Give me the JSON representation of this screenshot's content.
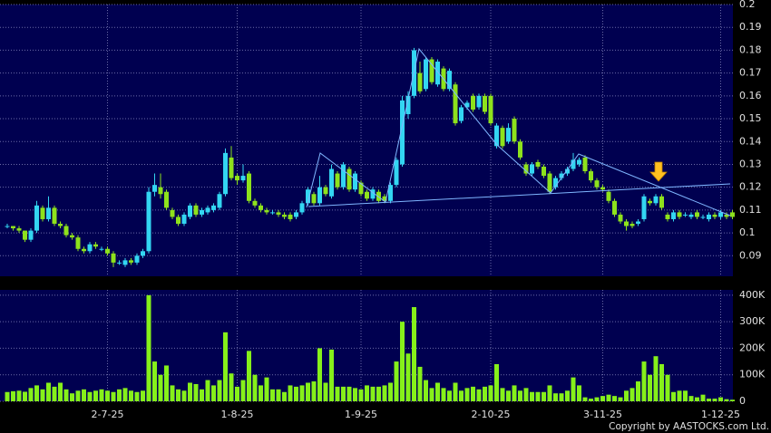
{
  "chart_data": {
    "type": "candlestick",
    "copyright": "Copyright by AASTOCKS.com Ltd.",
    "up_color": "#33d6f2",
    "down_color": "#8ee21c",
    "categories": [
      null,
      null,
      null,
      null,
      null,
      null,
      null,
      null,
      null,
      null,
      null,
      null,
      null,
      null,
      null,
      null,
      null,
      "2-7-25",
      null,
      null,
      null,
      null,
      null,
      null,
      null,
      null,
      null,
      null,
      null,
      null,
      null,
      null,
      null,
      null,
      null,
      null,
      null,
      null,
      null,
      "1-8-25",
      null,
      null,
      null,
      null,
      null,
      null,
      null,
      null,
      null,
      null,
      null,
      null,
      null,
      null,
      null,
      null,
      null,
      null,
      null,
      null,
      "1-9-25",
      null,
      null,
      null,
      null,
      null,
      null,
      null,
      null,
      null,
      null,
      null,
      null,
      null,
      null,
      null,
      null,
      null,
      null,
      null,
      null,
      null,
      "2-10-25",
      null,
      null,
      null,
      null,
      null,
      null,
      null,
      null,
      null,
      null,
      null,
      null,
      null,
      null,
      null,
      null,
      null,
      null,
      "3-11-25",
      null,
      null,
      null,
      null,
      null,
      null,
      null,
      null,
      null,
      null,
      null,
      null,
      null,
      null,
      null,
      null,
      null,
      null,
      null,
      "1-12-25",
      null,
      null
    ],
    "open": [
      0.103,
      0.103,
      0.102,
      0.101,
      0.097,
      0.101,
      0.111,
      0.106,
      0.111,
      0.104,
      0.103,
      0.099,
      0.098,
      0.093,
      0.092,
      0.095,
      0.093,
      0.093,
      0.091,
      0.087,
      0.086,
      0.088,
      0.087,
      0.09,
      0.092,
      0.118,
      0.12,
      0.118,
      0.11,
      0.107,
      0.104,
      0.107,
      0.112,
      0.108,
      0.109,
      0.11,
      0.111,
      0.117,
      0.133,
      0.125,
      0.123,
      0.126,
      0.114,
      0.112,
      0.11,
      0.109,
      0.109,
      0.108,
      0.108,
      0.107,
      0.109,
      0.113,
      0.117,
      0.113,
      0.12,
      0.116,
      0.126,
      0.12,
      0.128,
      0.119,
      0.122,
      0.118,
      0.115,
      0.118,
      0.116,
      0.114,
      0.121,
      0.13,
      0.152,
      0.16,
      0.17,
      0.163,
      0.176,
      0.165,
      0.172,
      0.163,
      0.165,
      0.149,
      0.155,
      0.16,
      0.155,
      0.16,
      0.16,
      0.138,
      0.146,
      0.14,
      0.15,
      0.14,
      0.13,
      0.126,
      0.131,
      0.129,
      0.126,
      0.12,
      0.124,
      0.126,
      0.128,
      0.13,
      0.133,
      0.127,
      0.123,
      0.12,
      0.118,
      0.114,
      0.108,
      0.105,
      0.104,
      0.104,
      0.106,
      0.114,
      0.113,
      0.116,
      0.108,
      0.106,
      0.109,
      0.108,
      0.107,
      0.109,
      0.107,
      0.106,
      0.108,
      0.107,
      0.108,
      0.109
    ],
    "high": [
      0.104,
      0.103,
      0.103,
      0.101,
      0.102,
      0.114,
      0.112,
      0.116,
      0.112,
      0.105,
      0.104,
      0.1,
      0.099,
      0.094,
      0.096,
      0.096,
      0.094,
      0.094,
      0.092,
      0.088,
      0.089,
      0.089,
      0.091,
      0.093,
      0.12,
      0.126,
      0.126,
      0.119,
      0.111,
      0.108,
      0.109,
      0.113,
      0.113,
      0.111,
      0.112,
      0.113,
      0.118,
      0.137,
      0.138,
      0.126,
      0.13,
      0.127,
      0.115,
      0.113,
      0.111,
      0.11,
      0.11,
      0.109,
      0.109,
      0.11,
      0.114,
      0.12,
      0.118,
      0.125,
      0.121,
      0.13,
      0.127,
      0.131,
      0.129,
      0.127,
      0.123,
      0.119,
      0.12,
      0.119,
      0.117,
      0.122,
      0.133,
      0.16,
      0.162,
      0.181,
      0.175,
      0.177,
      0.177,
      0.176,
      0.173,
      0.172,
      0.166,
      0.156,
      0.158,
      0.161,
      0.161,
      0.161,
      0.161,
      0.148,
      0.147,
      0.148,
      0.151,
      0.141,
      0.131,
      0.131,
      0.132,
      0.13,
      0.127,
      0.125,
      0.127,
      0.129,
      0.135,
      0.133,
      0.134,
      0.128,
      0.124,
      0.121,
      0.119,
      0.115,
      0.109,
      0.106,
      0.105,
      0.106,
      0.117,
      0.115,
      0.117,
      0.117,
      0.109,
      0.11,
      0.11,
      0.109,
      0.109,
      0.11,
      0.108,
      0.109,
      0.109,
      0.11,
      0.109,
      0.11
    ],
    "low": [
      0.102,
      0.101,
      0.1,
      0.096,
      0.096,
      0.1,
      0.105,
      0.105,
      0.103,
      0.102,
      0.098,
      0.097,
      0.092,
      0.091,
      0.091,
      0.093,
      0.092,
      0.09,
      0.085,
      0.086,
      0.085,
      0.086,
      0.086,
      0.089,
      0.091,
      0.116,
      0.115,
      0.11,
      0.106,
      0.103,
      0.103,
      0.106,
      0.107,
      0.107,
      0.108,
      0.109,
      0.11,
      0.116,
      0.123,
      0.121,
      0.122,
      0.113,
      0.111,
      0.109,
      0.108,
      0.108,
      0.107,
      0.106,
      0.105,
      0.106,
      0.108,
      0.112,
      0.112,
      0.112,
      0.116,
      0.115,
      0.119,
      0.119,
      0.118,
      0.118,
      0.116,
      0.114,
      0.114,
      0.113,
      0.113,
      0.113,
      0.12,
      0.129,
      0.15,
      0.159,
      0.161,
      0.162,
      0.165,
      0.164,
      0.162,
      0.162,
      0.147,
      0.148,
      0.154,
      0.153,
      0.154,
      0.152,
      0.147,
      0.137,
      0.137,
      0.139,
      0.139,
      0.132,
      0.125,
      0.125,
      0.128,
      0.124,
      0.117,
      0.119,
      0.123,
      0.125,
      0.127,
      0.129,
      0.126,
      0.122,
      0.119,
      0.118,
      0.113,
      0.107,
      0.104,
      0.101,
      0.102,
      0.103,
      0.105,
      0.112,
      0.112,
      0.11,
      0.105,
      0.105,
      0.106,
      0.107,
      0.106,
      0.106,
      0.106,
      0.105,
      0.106,
      0.106,
      0.106,
      0.106
    ],
    "close": [
      0.103,
      0.102,
      0.101,
      0.097,
      0.101,
      0.112,
      0.106,
      0.111,
      0.104,
      0.103,
      0.099,
      0.098,
      0.093,
      0.092,
      0.095,
      0.094,
      0.093,
      0.091,
      0.087,
      0.087,
      0.088,
      0.087,
      0.09,
      0.092,
      0.118,
      0.121,
      0.117,
      0.111,
      0.107,
      0.104,
      0.108,
      0.112,
      0.108,
      0.11,
      0.111,
      0.112,
      0.117,
      0.135,
      0.124,
      0.123,
      0.125,
      0.114,
      0.112,
      0.11,
      0.109,
      0.109,
      0.108,
      0.107,
      0.106,
      0.109,
      0.113,
      0.119,
      0.113,
      0.12,
      0.117,
      0.128,
      0.12,
      0.13,
      0.119,
      0.126,
      0.117,
      0.115,
      0.119,
      0.114,
      0.114,
      0.121,
      0.132,
      0.158,
      0.16,
      0.18,
      0.162,
      0.176,
      0.166,
      0.175,
      0.163,
      0.171,
      0.148,
      0.155,
      0.157,
      0.154,
      0.16,
      0.153,
      0.148,
      0.147,
      0.138,
      0.146,
      0.14,
      0.133,
      0.126,
      0.13,
      0.129,
      0.125,
      0.118,
      0.124,
      0.126,
      0.128,
      0.132,
      0.132,
      0.127,
      0.123,
      0.12,
      0.119,
      0.114,
      0.108,
      0.105,
      0.103,
      0.103,
      0.105,
      0.116,
      0.113,
      0.116,
      0.111,
      0.106,
      0.109,
      0.107,
      0.108,
      0.108,
      0.107,
      0.107,
      0.108,
      0.107,
      0.109,
      0.107,
      0.107
    ],
    "ylim": [
      0.081,
      0.2
    ],
    "yticks": [
      0.09,
      0.1,
      0.11,
      0.12,
      0.13,
      0.14,
      0.15,
      0.16,
      0.17,
      0.18,
      0.19,
      0.2
    ],
    "grid": true,
    "volume": {
      "type": "bar",
      "color": "#86f01a",
      "values": [
        35000,
        38000,
        40000,
        36000,
        50000,
        60000,
        45000,
        70000,
        55000,
        70000,
        45000,
        30000,
        40000,
        45000,
        35000,
        40000,
        45000,
        40000,
        35000,
        45000,
        50000,
        40000,
        35000,
        40000,
        400000,
        150000,
        100000,
        135000,
        60000,
        45000,
        40000,
        70000,
        65000,
        45000,
        80000,
        60000,
        80000,
        260000,
        105000,
        55000,
        80000,
        190000,
        100000,
        60000,
        90000,
        45000,
        45000,
        35000,
        60000,
        55000,
        60000,
        70000,
        75000,
        200000,
        70000,
        195000,
        55000,
        55000,
        55000,
        50000,
        45000,
        60000,
        55000,
        55000,
        60000,
        70000,
        150000,
        300000,
        180000,
        355000,
        130000,
        80000,
        50000,
        70000,
        50000,
        40000,
        70000,
        40000,
        50000,
        55000,
        45000,
        55000,
        60000,
        140000,
        50000,
        40000,
        60000,
        40000,
        50000,
        35000,
        35000,
        35000,
        60000,
        30000,
        30000,
        40000,
        90000,
        60000,
        15000,
        10000,
        15000,
        20000,
        25000,
        20000,
        15000,
        40000,
        50000,
        75000,
        150000,
        100000,
        170000,
        140000,
        100000,
        35000,
        40000,
        40000,
        20000,
        15000,
        25000,
        10000,
        10000,
        15000,
        8000,
        6000
      ],
      "ylim": [
        0,
        420000
      ],
      "yticks": [
        0,
        {
          "value": 100000,
          "label": "100K"
        },
        {
          "value": 200000,
          "label": "200K"
        },
        {
          "value": 300000,
          "label": "300K"
        },
        {
          "value": 400000,
          "label": "400K"
        }
      ]
    }
  }
}
